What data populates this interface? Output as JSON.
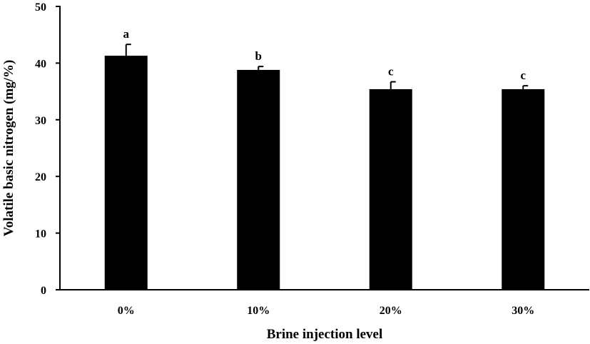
{
  "chart_data": {
    "type": "bar",
    "title": "",
    "xlabel": "Brine injection level",
    "ylabel": "Volatile basic nitrogen (mg/%)",
    "categories": [
      "0%",
      "10%",
      "20%",
      "30%"
    ],
    "values": [
      41.3,
      38.8,
      35.4,
      35.4
    ],
    "errors": [
      2.0,
      0.6,
      1.3,
      0.6
    ],
    "significance_labels": [
      "a",
      "b",
      "c",
      "c"
    ],
    "ylim": [
      0,
      50
    ],
    "yticks": [
      0,
      10,
      20,
      30,
      40,
      50
    ],
    "grid": false,
    "legend": "none",
    "bar_color": "#000000"
  }
}
